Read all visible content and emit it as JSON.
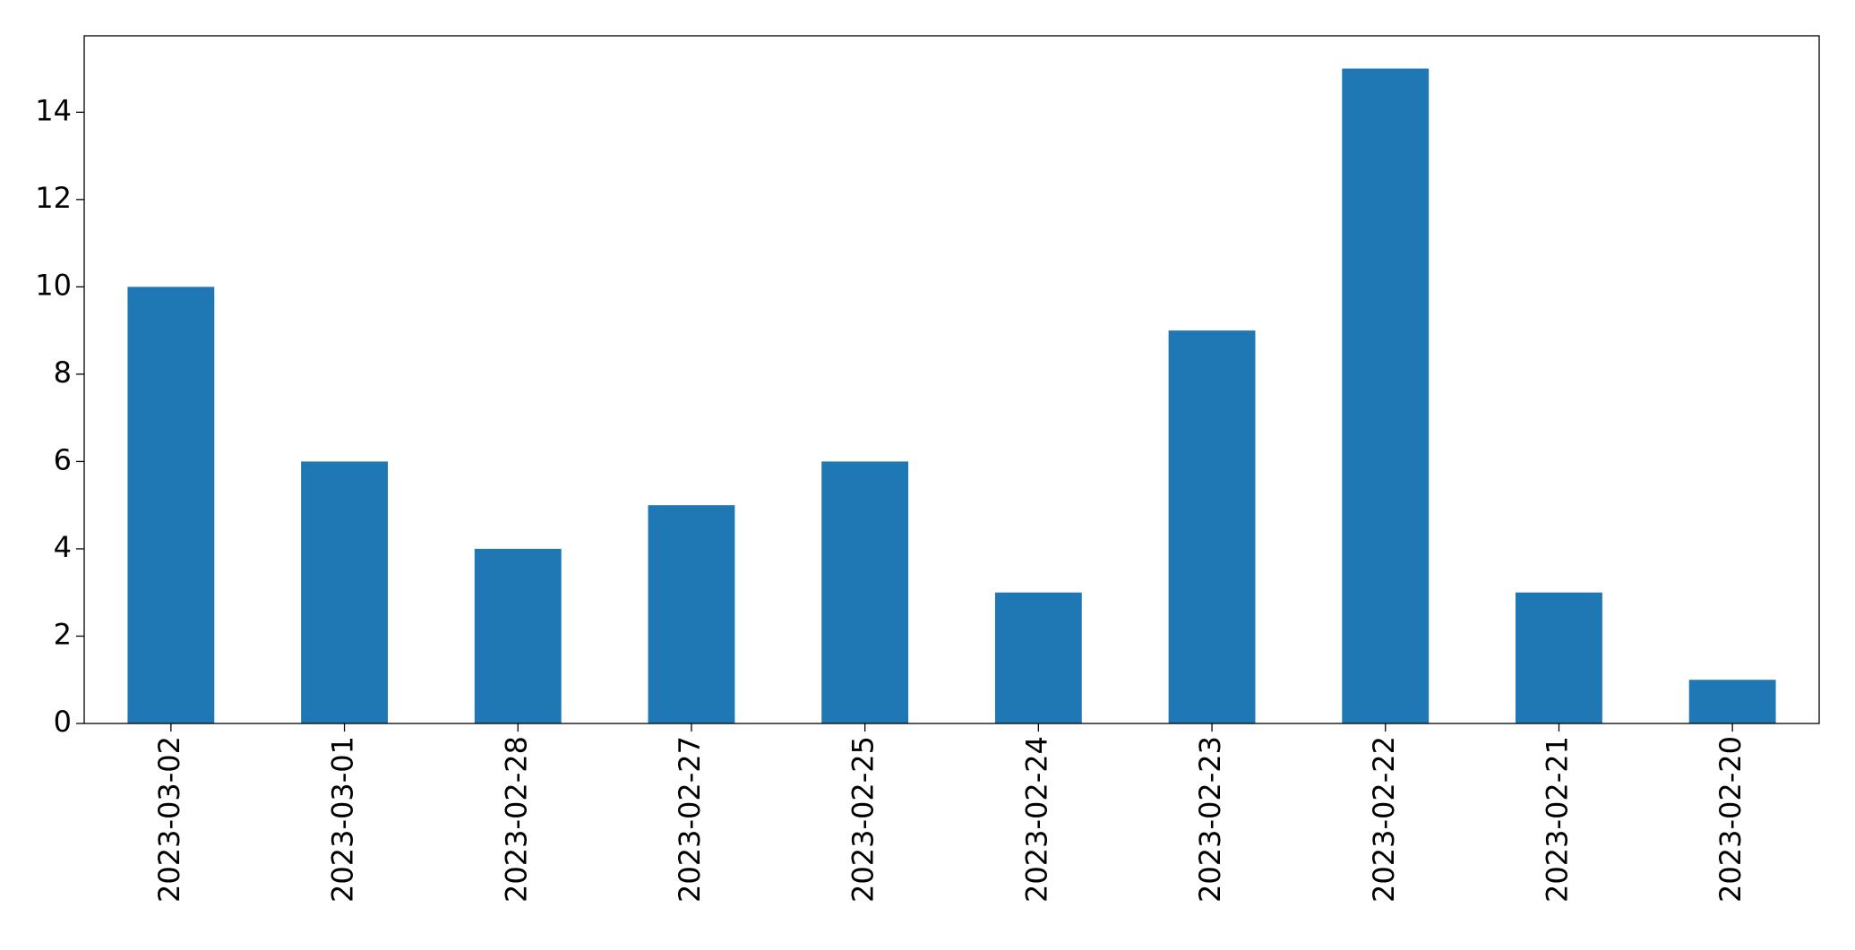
{
  "chart_data": {
    "type": "bar",
    "categories": [
      "2023-03-02",
      "2023-03-01",
      "2023-02-28",
      "2023-02-27",
      "2023-02-25",
      "2023-02-24",
      "2023-02-23",
      "2023-02-22",
      "2023-02-21",
      "2023-02-20"
    ],
    "values": [
      10,
      6,
      4,
      5,
      6,
      3,
      9,
      15,
      3,
      1
    ],
    "color": "#1f77b4",
    "ylim": [
      0,
      15.75
    ],
    "yticks": [
      0,
      2,
      4,
      6,
      8,
      10,
      12,
      14
    ],
    "grid": false
  }
}
